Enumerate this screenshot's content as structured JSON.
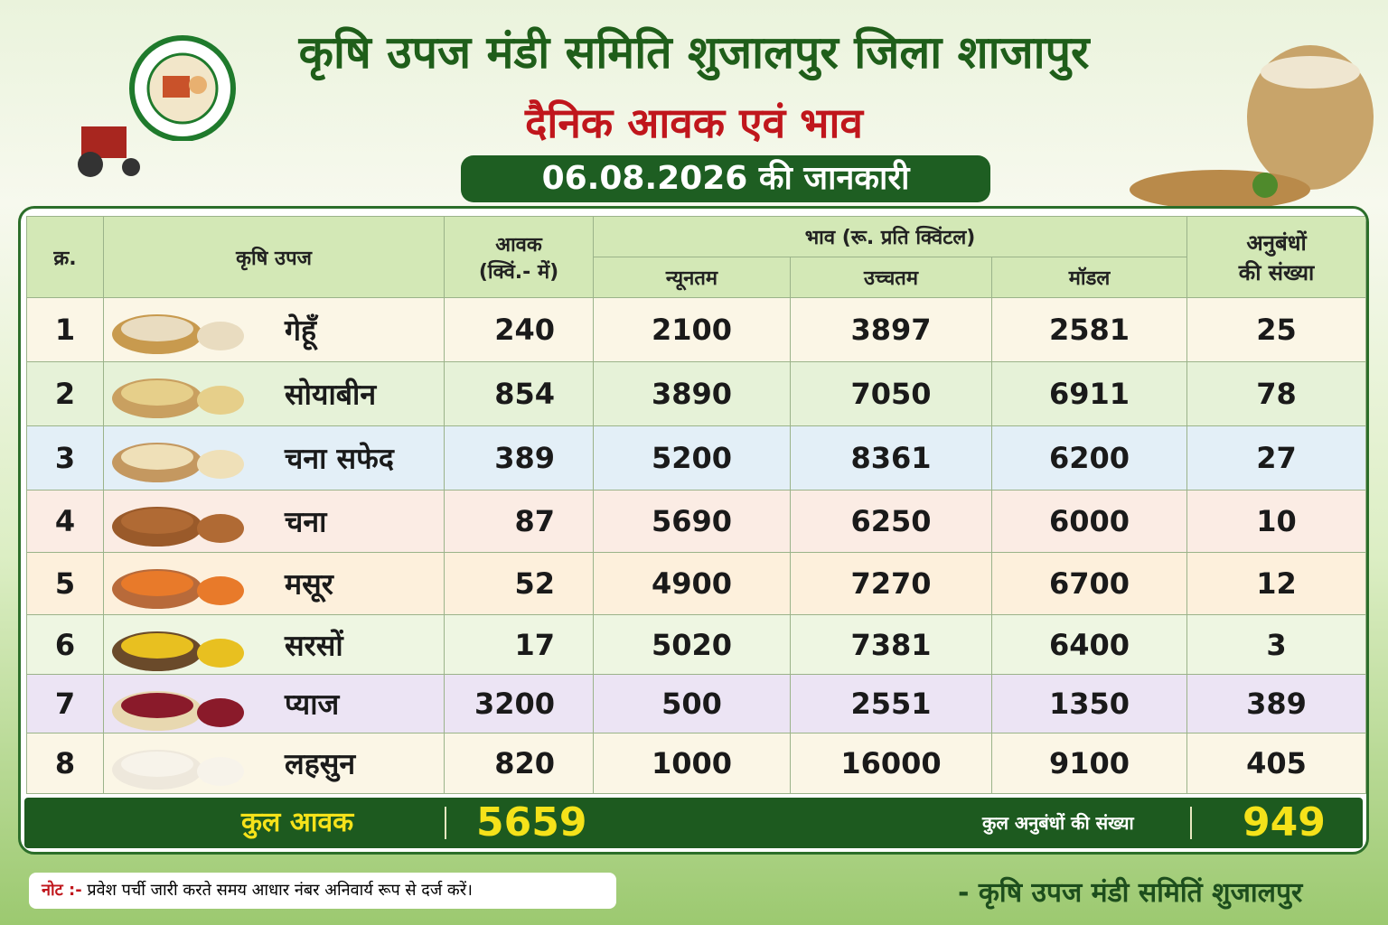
{
  "header": {
    "title": "कृषि उपज मंडी समिति शुजालपुर जिला शाजापुर",
    "subtitle": "दैनिक आवक एवं भाव",
    "date": "06.08.2026 की जानकारी"
  },
  "table": {
    "headers": {
      "serial": "क्र.",
      "crop": "कृषि उपज",
      "arrival": [
        "आवक",
        "(क्विं.- में)"
      ],
      "price": "भाव (रू. प्रति क्विंटल)",
      "min": "न्यूनतम",
      "max": "उच्चतम",
      "modal": "मॉडल",
      "contracts": [
        "अनुबंधों",
        "की संख्या"
      ]
    },
    "rows": [
      [
        1,
        "गेहूँ",
        240,
        2100,
        3897,
        2581,
        25
      ],
      [
        2,
        "सोयाबीन",
        854,
        3890,
        7050,
        6911,
        78
      ],
      [
        3,
        "चना सफेद",
        389,
        5200,
        8361,
        6200,
        27
      ],
      [
        4,
        "चना",
        87,
        5690,
        6250,
        6000,
        10
      ],
      [
        5,
        "मसूर",
        52,
        4900,
        7270,
        6700,
        12
      ],
      [
        6,
        "सरसों",
        17,
        5020,
        7381,
        6400,
        3
      ],
      [
        7,
        "प्याज",
        3200,
        500,
        2551,
        1350,
        389
      ],
      [
        8,
        "लहसुन",
        820,
        1000,
        16000,
        9100,
        405
      ]
    ],
    "total": {
      "arrival_label": "कुल आवक",
      "arrival": 5659,
      "contracts_label": "कुल अनुबंधों की संख्या",
      "contracts": 949
    }
  },
  "note": {
    "label": "नोट :-",
    "text": "प्रवेश पर्ची जारी करते समय आधार नंबर अनिवार्य रूप से दर्ज करें।"
  },
  "footer": "- कृषि उपज मंडी समितिं शुजालपुर"
}
